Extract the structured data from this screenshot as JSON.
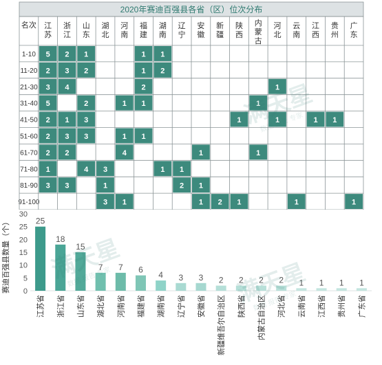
{
  "chart_data": [
    {
      "type": "table",
      "title": "2020年赛迪百强县各省（区）位次分布",
      "corner_label": "名次",
      "columns": [
        "江\n苏",
        "浙\n江",
        "山\n东",
        "湖\n北",
        "河\n南",
        "福\n建",
        "湖\n南",
        "辽\n宁",
        "安\n徽",
        "新\n疆",
        "陕\n西",
        "内\n蒙\n古",
        "河\n北",
        "云\n南",
        "江\n西",
        "贵\n州",
        "广\n东"
      ],
      "rows": [
        "1-10",
        "11-20",
        "21-30",
        "31-40",
        "41-50",
        "51-60",
        "61-70",
        "71-80",
        "81-90",
        "91-100"
      ],
      "cells": [
        [
          5,
          2,
          1,
          null,
          null,
          1,
          1,
          null,
          null,
          null,
          null,
          null,
          null,
          null,
          null,
          null,
          null
        ],
        [
          2,
          3,
          2,
          null,
          null,
          1,
          2,
          null,
          null,
          null,
          null,
          null,
          null,
          null,
          null,
          null,
          null
        ],
        [
          3,
          4,
          null,
          null,
          null,
          2,
          null,
          null,
          null,
          null,
          null,
          null,
          1,
          null,
          null,
          null,
          null
        ],
        [
          5,
          null,
          2,
          null,
          1,
          1,
          null,
          null,
          null,
          null,
          null,
          1,
          null,
          null,
          null,
          null,
          null
        ],
        [
          2,
          1,
          3,
          null,
          null,
          null,
          null,
          null,
          null,
          null,
          1,
          null,
          1,
          null,
          1,
          1,
          null
        ],
        [
          2,
          3,
          3,
          null,
          1,
          1,
          null,
          null,
          null,
          null,
          null,
          null,
          null,
          null,
          null,
          null,
          null
        ],
        [
          2,
          2,
          null,
          null,
          4,
          null,
          null,
          null,
          1,
          null,
          null,
          1,
          null,
          null,
          null,
          null,
          null
        ],
        [
          1,
          null,
          4,
          3,
          null,
          null,
          1,
          1,
          null,
          null,
          null,
          null,
          null,
          null,
          null,
          null,
          null
        ],
        [
          3,
          3,
          null,
          1,
          null,
          null,
          null,
          2,
          1,
          null,
          null,
          null,
          null,
          null,
          null,
          null,
          null
        ],
        [
          null,
          null,
          null,
          3,
          1,
          null,
          null,
          null,
          1,
          2,
          1,
          null,
          null,
          1,
          null,
          null,
          1
        ]
      ],
      "colors": {
        "title_bg": "#dde2e4",
        "title_text": "#2f7a70",
        "filled_cell": "#3d8a7d",
        "grid_line": "#8a9496"
      }
    },
    {
      "type": "bar",
      "ylabel": "赛迪百强县数量（个）",
      "ylim": [
        0,
        30
      ],
      "yticks": [
        0,
        5,
        10,
        15,
        20,
        25,
        30
      ],
      "categories": [
        "江苏省",
        "浙江省",
        "山东省",
        "湖北省",
        "河南省",
        "福建省",
        "湖南省",
        "辽宁省",
        "安徽省",
        "新疆维吾尔自治区",
        "陕西省",
        "内蒙古自治区",
        "河北省",
        "云南省",
        "江西省",
        "贵州省",
        "广东省"
      ],
      "values": [
        25,
        18,
        15,
        7,
        7,
        6,
        4,
        3,
        3,
        2,
        2,
        2,
        2,
        1,
        1,
        1,
        1
      ],
      "colors": [
        "#3d9a8b",
        "#4aa596",
        "#52a999",
        "#70bfae",
        "#6dbba9",
        "#7fc6b6",
        "#8fd3c8",
        "#a9dad2",
        "#a6d8d0",
        "#b5dfd8",
        "#b5dfd8",
        "#b8e0d9",
        "#b8e0d9",
        "#c4e5df",
        "#c4e5df",
        "#c4e5df",
        "#c4e5df"
      ]
    }
  ],
  "watermark": {
    "text_main": "满天星",
    "text_sub": "数据 报告 专家"
  }
}
